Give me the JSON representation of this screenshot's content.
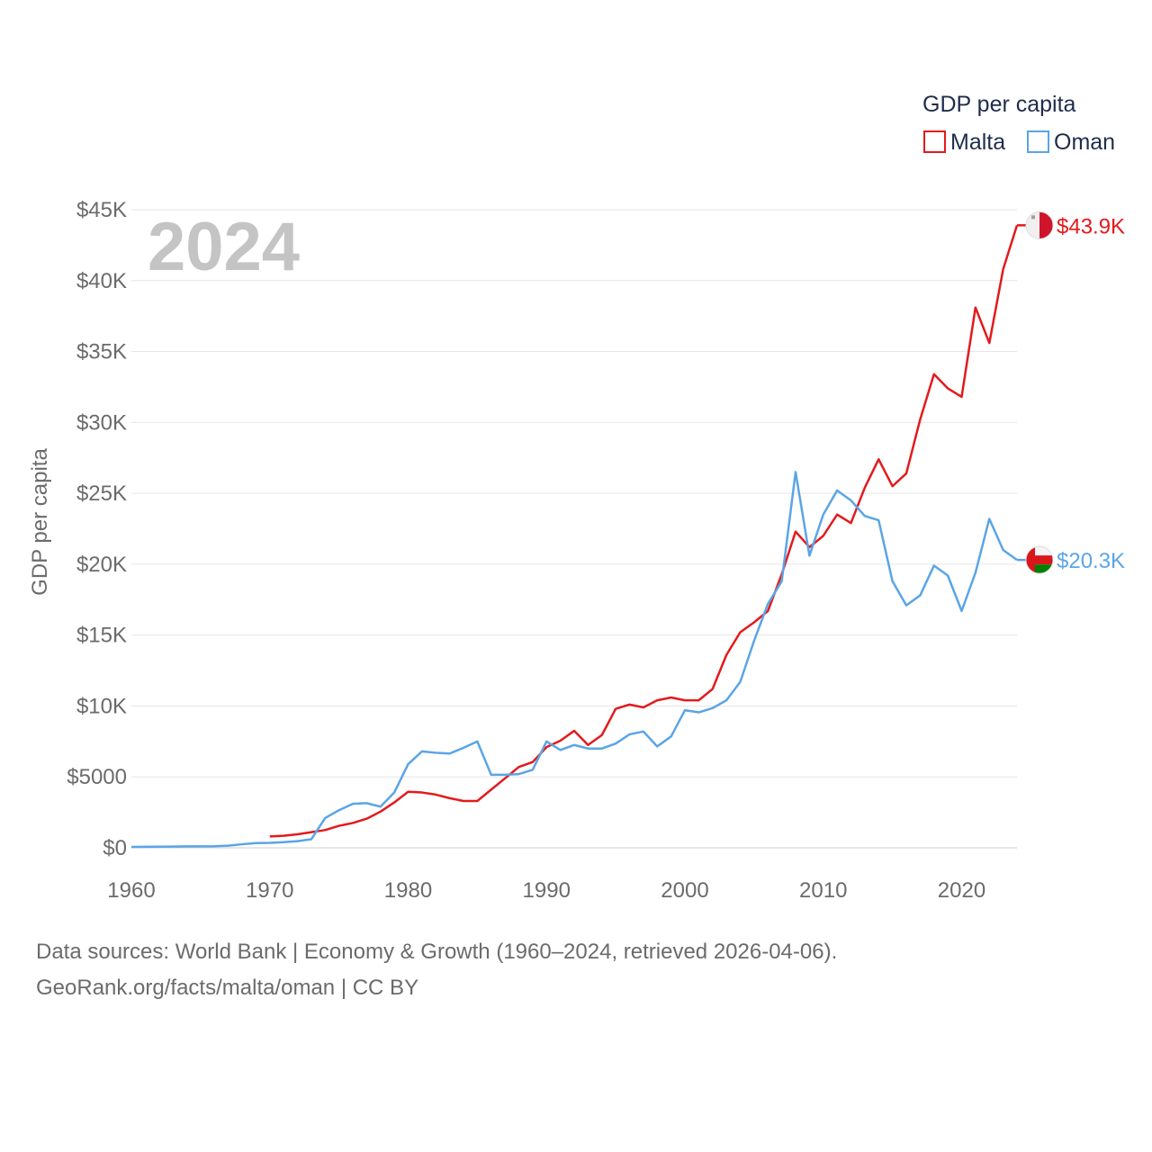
{
  "chart_data": {
    "type": "line",
    "year_label": "2024",
    "legend_title": "GDP per capita",
    "ylabel": "GDP per capita",
    "xlim": [
      1960,
      2024
    ],
    "ylim": [
      0,
      45000
    ],
    "x_ticks": [
      1960,
      1970,
      1980,
      1990,
      2000,
      2010,
      2020
    ],
    "x_tick_labels": [
      "1960",
      "1970",
      "1980",
      "1990",
      "2000",
      "2010",
      "2020"
    ],
    "y_ticks": [
      0,
      5000,
      10000,
      15000,
      20000,
      25000,
      30000,
      35000,
      40000,
      45000
    ],
    "y_tick_labels": [
      "$0",
      "$5000",
      "$10K",
      "$15K",
      "$20K",
      "$25K",
      "$30K",
      "$35K",
      "$40K",
      "$45K"
    ],
    "series": [
      {
        "name": "Malta",
        "color": "#e31a1c",
        "end_label": "$43.9K",
        "flag_icon": "malta-flag-icon",
        "x": [
          1970,
          1971,
          1972,
          1973,
          1974,
          1975,
          1976,
          1977,
          1978,
          1979,
          1980,
          1981,
          1982,
          1983,
          1984,
          1985,
          1986,
          1987,
          1988,
          1989,
          1990,
          1991,
          1992,
          1993,
          1994,
          1995,
          1996,
          1997,
          1998,
          1999,
          2000,
          2001,
          2002,
          2003,
          2004,
          2005,
          2006,
          2007,
          2008,
          2009,
          2010,
          2011,
          2012,
          2013,
          2014,
          2015,
          2016,
          2017,
          2018,
          2019,
          2020,
          2021,
          2022,
          2023,
          2024
        ],
        "values": [
          800,
          850,
          950,
          1100,
          1250,
          1550,
          1750,
          2050,
          2550,
          3200,
          3950,
          3900,
          3750,
          3500,
          3300,
          3300,
          4100,
          4900,
          5700,
          6050,
          7100,
          7550,
          8250,
          7250,
          7950,
          9800,
          10100,
          9900,
          10400,
          10600,
          10400,
          10400,
          11200,
          13600,
          15200,
          15900,
          16700,
          19300,
          22300,
          21200,
          22000,
          23500,
          22900,
          25400,
          27400,
          25500,
          26400,
          30200,
          33400,
          32400,
          31800,
          38100,
          35600,
          40800,
          43900
        ]
      },
      {
        "name": "Oman",
        "color": "#5aa5e6",
        "end_label": "$20.3K",
        "flag_icon": "oman-flag-icon",
        "x": [
          1960,
          1961,
          1962,
          1963,
          1964,
          1965,
          1966,
          1967,
          1968,
          1969,
          1970,
          1971,
          1972,
          1973,
          1974,
          1975,
          1976,
          1977,
          1978,
          1979,
          1980,
          1981,
          1982,
          1983,
          1984,
          1985,
          1986,
          1987,
          1988,
          1989,
          1990,
          1991,
          1992,
          1993,
          1994,
          1995,
          1996,
          1997,
          1998,
          1999,
          2000,
          2001,
          2002,
          2003,
          2004,
          2005,
          2006,
          2007,
          2008,
          2009,
          2010,
          2011,
          2012,
          2013,
          2014,
          2015,
          2016,
          2017,
          2018,
          2019,
          2020,
          2021,
          2022,
          2023,
          2024
        ],
        "values": [
          60,
          70,
          80,
          90,
          100,
          100,
          110,
          150,
          250,
          330,
          350,
          400,
          470,
          600,
          2100,
          2650,
          3100,
          3150,
          2900,
          3900,
          5900,
          6800,
          6700,
          6650,
          7050,
          7500,
          5150,
          5150,
          5200,
          5500,
          7500,
          6900,
          7250,
          7000,
          7000,
          7350,
          8000,
          8200,
          7150,
          7850,
          9700,
          9550,
          9850,
          10400,
          11700,
          14600,
          17200,
          18800,
          26500,
          20600,
          23500,
          25200,
          24500,
          23400,
          23100,
          18800,
          17100,
          17800,
          19900,
          19200,
          16700,
          19400,
          23200,
          21000,
          20300
        ]
      }
    ]
  },
  "footer": {
    "line1": "Data sources: World Bank | Economy & Growth (1960–2024, retrieved 2026-04-06).",
    "line2": "GeoRank.org/facts/malta/oman | CC BY"
  }
}
